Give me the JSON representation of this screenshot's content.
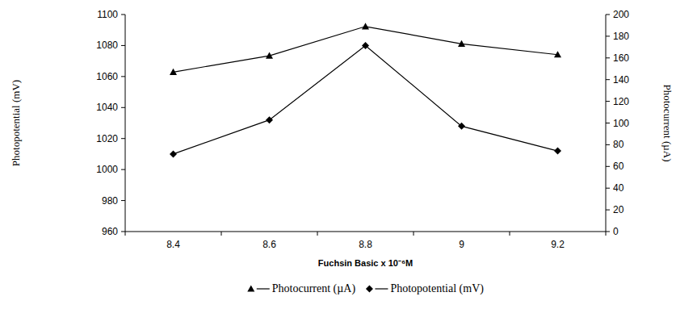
{
  "chart_data": {
    "type": "line",
    "x_label": "Fuchsin Basic x 10⁻⁶M",
    "y_label": "Photopotential (mV)",
    "y2_label": "Photocurrent (µA)",
    "categories": [
      "8.4",
      "8.6",
      "8.8",
      "9",
      "9.2"
    ],
    "series": [
      {
        "name": "Photocurrent (µA)",
        "color": "#000000",
        "marker": "triangle",
        "axis": "y2",
        "values": [
          147,
          162,
          189,
          173,
          163
        ]
      },
      {
        "name": "Photopotential (mV)",
        "color": "#000000",
        "marker": "diamond",
        "axis": "y",
        "values": [
          1010,
          1032,
          1080,
          1028,
          1012
        ]
      }
    ],
    "ylim": [
      960,
      1100
    ],
    "yticks": [
      960,
      980,
      1000,
      1020,
      1040,
      1060,
      1080,
      1100
    ],
    "y2lim": [
      0,
      200
    ],
    "y2ticks": [
      0,
      20,
      40,
      60,
      80,
      100,
      120,
      140,
      160,
      180,
      200
    ],
    "grid": false,
    "legend": "bottom"
  }
}
